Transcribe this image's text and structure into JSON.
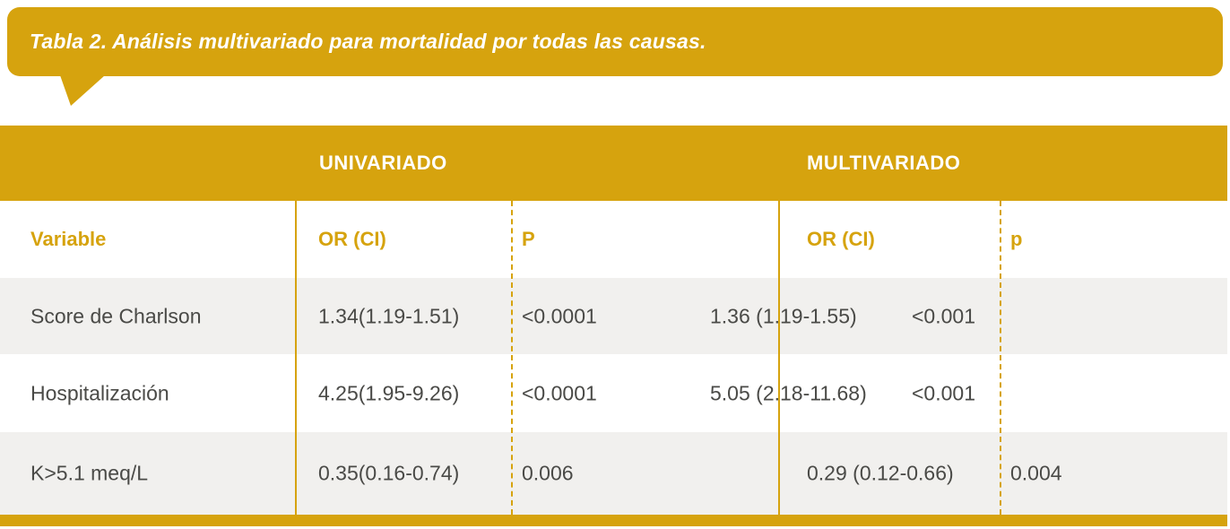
{
  "title": "Tabla 2. Análisis multivariado para mortalidad por todas las causas.",
  "colors": {
    "accent_gold": "#d6a30e",
    "row_alt_gray": "#f1f0ee",
    "body_text": "#4a4a47",
    "header_text": "#ffffff"
  },
  "table": {
    "group_headers": {
      "univariate": "UNIVARIADO",
      "multivariate": "MULTIVARIADO"
    },
    "column_headers": {
      "variable": "Variable",
      "uni_or": "OR (CI)",
      "uni_p": "P",
      "multi_or": "OR (CI)",
      "multi_p": "p"
    },
    "rows": [
      {
        "variable": "Score de Charlson",
        "uni_or": "1.34(1.19-1.51)",
        "uni_p": "<0.0001",
        "multi_or": "1.36 (1.19-1.55)",
        "multi_p": "<0.001"
      },
      {
        "variable": "Hospitalización",
        "uni_or": "4.25(1.95-9.26)",
        "uni_p": "<0.0001",
        "multi_or": "5.05 (2.18-11.68)",
        "multi_p": "<0.001"
      },
      {
        "variable": "K>5.1 meq/L",
        "uni_or": "0.35(0.16-0.74)",
        "uni_p": "0.006",
        "multi_or": "0.29 (0.12-0.66)",
        "multi_p": "0.004"
      }
    ]
  }
}
